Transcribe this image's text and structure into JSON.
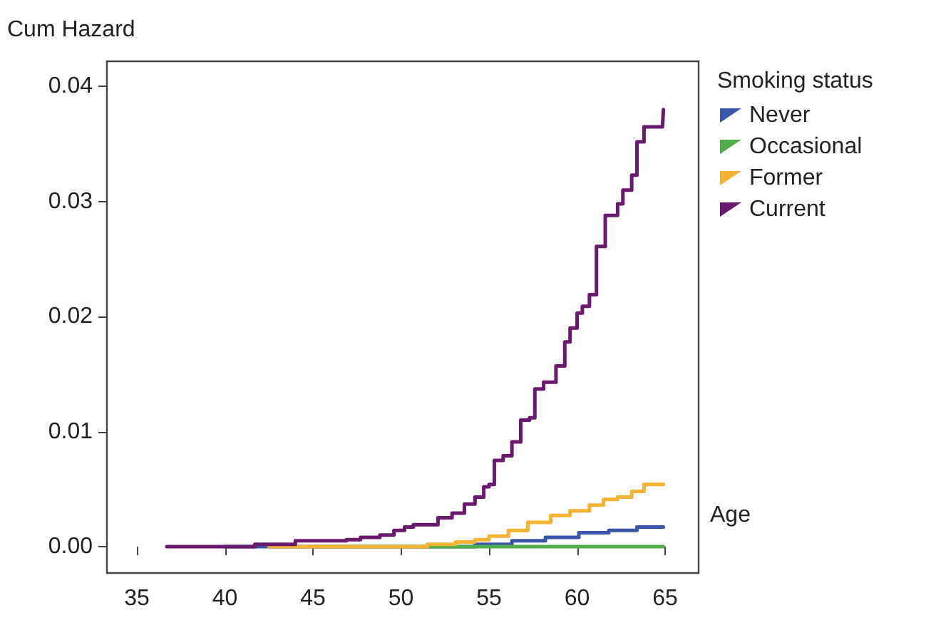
{
  "chart_data": {
    "type": "step",
    "ylabel": "Cum Hazard",
    "xlabel": "Age",
    "legend_title": "Smoking status",
    "xlim": [
      33.3,
      66.9
    ],
    "xticks": [
      35,
      40,
      45,
      50,
      55,
      60,
      65
    ],
    "ylim": [
      -0.0023,
      0.0422
    ],
    "yticks": [
      {
        "value": 0,
        "label": "0.00"
      },
      0.01,
      0.02,
      0.03,
      0.04
    ],
    "legend": "right",
    "grid": false,
    "marker": "none",
    "line_style": "solid",
    "series": [
      {
        "name": "Never",
        "color": "#3a56a8",
        "x": [
          40,
          51.5,
          54.2,
          56.3,
          58.2,
          60.1,
          61.8,
          63.4,
          64.9
        ],
        "values": [
          0,
          0,
          0.0002,
          0.0005,
          0.0008,
          0.0012,
          0.0014,
          0.0017,
          0.0017
        ]
      },
      {
        "name": "Occasional",
        "color": "#4fae4a",
        "x": [
          45,
          64.9
        ],
        "values": [
          0,
          0
        ]
      },
      {
        "name": "Former",
        "color": "#f5b335",
        "x": [
          42.5,
          51.5,
          53.1,
          54.2,
          55.0,
          56.1,
          57.2,
          58.5,
          59.6,
          60.7,
          61.5,
          62.3,
          63.1,
          63.8,
          64.9
        ],
        "values": [
          0,
          0.0002,
          0.0004,
          0.0006,
          0.0009,
          0.0014,
          0.0021,
          0.0027,
          0.0031,
          0.0036,
          0.0041,
          0.0043,
          0.0048,
          0.0054,
          0.0054
        ]
      },
      {
        "name": "Current",
        "color": "#6a1a6e",
        "x": [
          36.7,
          41.7,
          44.0,
          46.9,
          47.7,
          48.8,
          49.6,
          50.2,
          50.7,
          52.1,
          52.9,
          53.6,
          54.2,
          54.7,
          55.0,
          55.3,
          55.8,
          56.3,
          56.8,
          57.3,
          57.6,
          58.1,
          58.8,
          59.3,
          59.6,
          60.0,
          60.3,
          60.7,
          61.1,
          61.6,
          62.3,
          62.6,
          63.1,
          63.4,
          63.8,
          64.85,
          64.9
        ],
        "values": [
          0,
          0.0002,
          0.0005,
          0.0006,
          0.0008,
          0.001,
          0.0014,
          0.0017,
          0.0019,
          0.0025,
          0.0029,
          0.0037,
          0.0043,
          0.0052,
          0.0054,
          0.0075,
          0.0079,
          0.0091,
          0.011,
          0.0112,
          0.0137,
          0.0143,
          0.0157,
          0.0178,
          0.019,
          0.0203,
          0.0209,
          0.0219,
          0.0261,
          0.0288,
          0.0298,
          0.031,
          0.0323,
          0.0352,
          0.0365,
          0.0365,
          0.038
        ]
      }
    ]
  }
}
